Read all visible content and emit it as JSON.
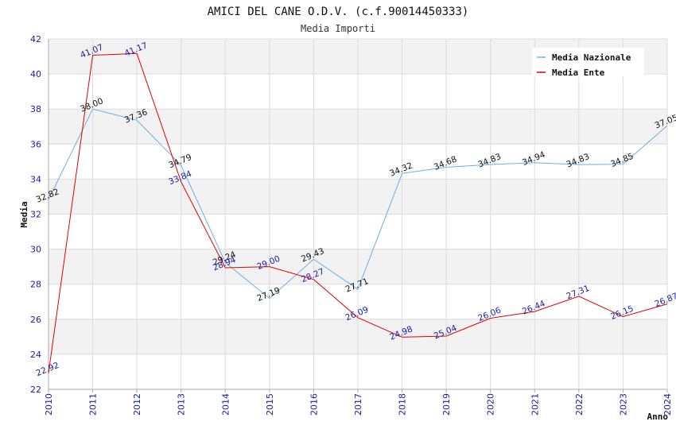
{
  "chart_data": {
    "type": "line",
    "title": "AMICI DEL CANE O.D.V. (c.f.90014450333)",
    "subtitle": "Media Importi",
    "xlabel": "Anno",
    "ylabel": "Media",
    "ylim": [
      22,
      42
    ],
    "yticks": [
      22,
      24,
      26,
      28,
      30,
      32,
      34,
      36,
      38,
      40,
      42
    ],
    "categories": [
      "2010",
      "2011",
      "2012",
      "2013",
      "2014",
      "2015",
      "2016",
      "2017",
      "2018",
      "2019",
      "2020",
      "2021",
      "2022",
      "2023",
      "2024"
    ],
    "grid": true,
    "legend_position": "top-right",
    "series": [
      {
        "name": "Media Nazionale",
        "color": "#6aaee8",
        "label_color": "#111111",
        "values": [
          32.82,
          38.0,
          37.36,
          34.79,
          29.24,
          27.19,
          29.43,
          27.71,
          34.32,
          34.68,
          34.83,
          34.94,
          34.83,
          34.85,
          37.05
        ],
        "labels": [
          "32.82",
          "38.00",
          "37.36",
          "34.79",
          "29.24",
          "27.19",
          "29.43",
          "27.71",
          "34.32",
          "34.68",
          "34.83",
          "34.94",
          "34.83",
          "34.85",
          "37.05"
        ]
      },
      {
        "name": "Media Ente",
        "color": "#e00000",
        "label_color": "#1a1aa6",
        "values": [
          22.92,
          41.07,
          41.17,
          33.84,
          28.94,
          29.0,
          28.27,
          26.09,
          24.98,
          25.04,
          26.06,
          26.44,
          27.31,
          26.15,
          26.87
        ],
        "labels": [
          "22.92",
          "41.07",
          "41.17",
          "33.84",
          "28.94",
          "29.00",
          "28.27",
          "26.09",
          "24.98",
          "25.04",
          "26.06",
          "26.44",
          "27.31",
          "26.15",
          "26.87"
        ]
      }
    ]
  }
}
